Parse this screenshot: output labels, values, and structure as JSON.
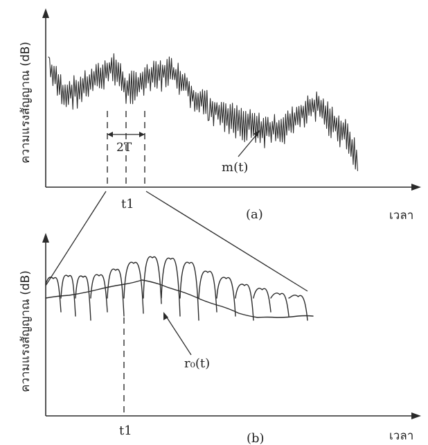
{
  "panel_a": {
    "y_axis_label": "ความแรงสัญญาณ (dB)",
    "x_axis_label": "เวลา",
    "caption": "(a)",
    "signal_label": "m(t)",
    "window_label": "2T",
    "time_marker": "t1"
  },
  "panel_b": {
    "y_axis_label": "ความแรงสัญญาณ (dB)",
    "x_axis_label": "เวลา",
    "caption": "(b)",
    "signal_label": "r₀(t)",
    "time_marker": "t1"
  },
  "colors": {
    "ink": "#2a2a2a",
    "background": "#ffffff"
  }
}
